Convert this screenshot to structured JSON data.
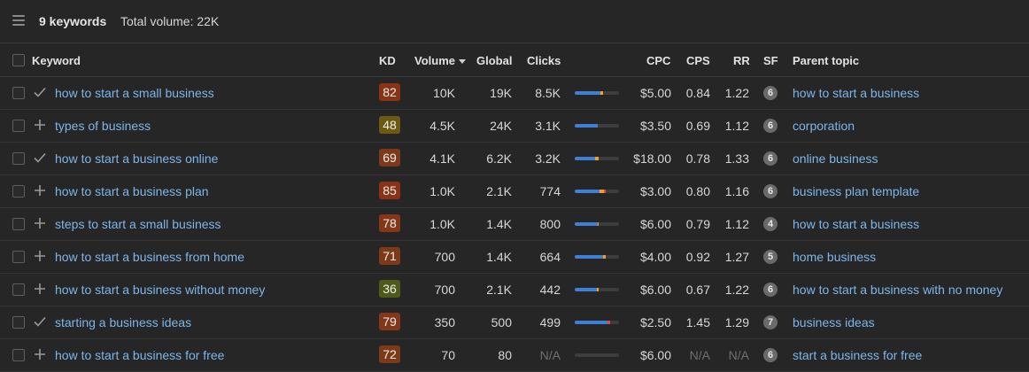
{
  "header": {
    "keywords_count": "9 keywords",
    "total_volume": "Total volume: 22K"
  },
  "columns": {
    "keyword": "Keyword",
    "kd": "KD",
    "volume": "Volume",
    "global": "Global",
    "clicks": "Clicks",
    "cpc": "CPC",
    "cps": "CPS",
    "rr": "RR",
    "sf": "SF",
    "parent_topic": "Parent topic"
  },
  "colors": {
    "link": "#7cb6ea",
    "kd_hard": "#8a3b1a",
    "kd_medium": "#6b5a14",
    "kd_easy": "#4a5a18",
    "bar_organic": "#3f7fd6",
    "bar_paid": "#f0a020",
    "bar_extra": "#d84a4a"
  },
  "rows": [
    {
      "status": "check",
      "keyword": "how to start a small business",
      "kd": "82",
      "kd_color": "#8a3216",
      "volume": "10K",
      "global": "19K",
      "clicks": "8.5K",
      "bar": [
        0.58,
        0.06,
        0.0
      ],
      "cpc": "$5.00",
      "cps": "0.84",
      "rr": "1.22",
      "sf": "6",
      "parent": "how to start a business"
    },
    {
      "status": "plus",
      "keyword": "types of business",
      "kd": "48",
      "kd_color": "#6b5a14",
      "volume": "4.5K",
      "global": "24K",
      "clicks": "3.1K",
      "bar": [
        0.52,
        0.0,
        0.0
      ],
      "cpc": "$3.50",
      "cps": "0.69",
      "rr": "1.12",
      "sf": "6",
      "parent": "corporation"
    },
    {
      "status": "check",
      "keyword": "how to start a business online",
      "kd": "69",
      "kd_color": "#7e3a18",
      "volume": "4.1K",
      "global": "6.2K",
      "clicks": "3.2K",
      "bar": [
        0.46,
        0.08,
        0.0
      ],
      "cpc": "$18.00",
      "cps": "0.78",
      "rr": "1.33",
      "sf": "6",
      "parent": "online business"
    },
    {
      "status": "plus",
      "keyword": "how to start a business plan",
      "kd": "85",
      "kd_color": "#8a3216",
      "volume": "1.0K",
      "global": "2.1K",
      "clicks": "774",
      "bar": [
        0.56,
        0.1,
        0.04
      ],
      "cpc": "$3.00",
      "cps": "0.80",
      "rr": "1.16",
      "sf": "6",
      "parent": "business plan template"
    },
    {
      "status": "plus",
      "keyword": "steps to start a small business",
      "kd": "78",
      "kd_color": "#843618",
      "volume": "1.0K",
      "global": "1.4K",
      "clicks": "800",
      "bar": [
        0.52,
        0.02,
        0.0
      ],
      "cpc": "$6.00",
      "cps": "0.79",
      "rr": "1.12",
      "sf": "4",
      "parent": "how to start a business"
    },
    {
      "status": "plus",
      "keyword": "how to start a business from home",
      "kd": "71",
      "kd_color": "#7e3a18",
      "volume": "700",
      "global": "1.4K",
      "clicks": "664",
      "bar": [
        0.64,
        0.06,
        0.0
      ],
      "cpc": "$4.00",
      "cps": "0.92",
      "rr": "1.27",
      "sf": "5",
      "parent": "home business"
    },
    {
      "status": "plus",
      "keyword": "how to start a business without money",
      "kd": "36",
      "kd_color": "#4e5a18",
      "volume": "700",
      "global": "2.1K",
      "clicks": "442",
      "bar": [
        0.5,
        0.04,
        0.0
      ],
      "cpc": "$6.00",
      "cps": "0.67",
      "rr": "1.22",
      "sf": "6",
      "parent": "how to start a business with no money"
    },
    {
      "status": "check",
      "keyword": "starting a business ideas",
      "kd": "79",
      "kd_color": "#843618",
      "volume": "350",
      "global": "500",
      "clicks": "499",
      "bar": [
        0.74,
        0.0,
        0.06
      ],
      "cpc": "$2.50",
      "cps": "1.45",
      "rr": "1.29",
      "sf": "7",
      "parent": "business ideas"
    },
    {
      "status": "plus",
      "keyword": "how to start a business for free",
      "kd": "72",
      "kd_color": "#7e3a18",
      "volume": "70",
      "global": "80",
      "clicks": "N/A",
      "bar": [
        0.0,
        0.0,
        0.0
      ],
      "cpc": "$6.00",
      "cps": "N/A",
      "rr": "N/A",
      "sf": "6",
      "parent": "start a business for free"
    }
  ]
}
